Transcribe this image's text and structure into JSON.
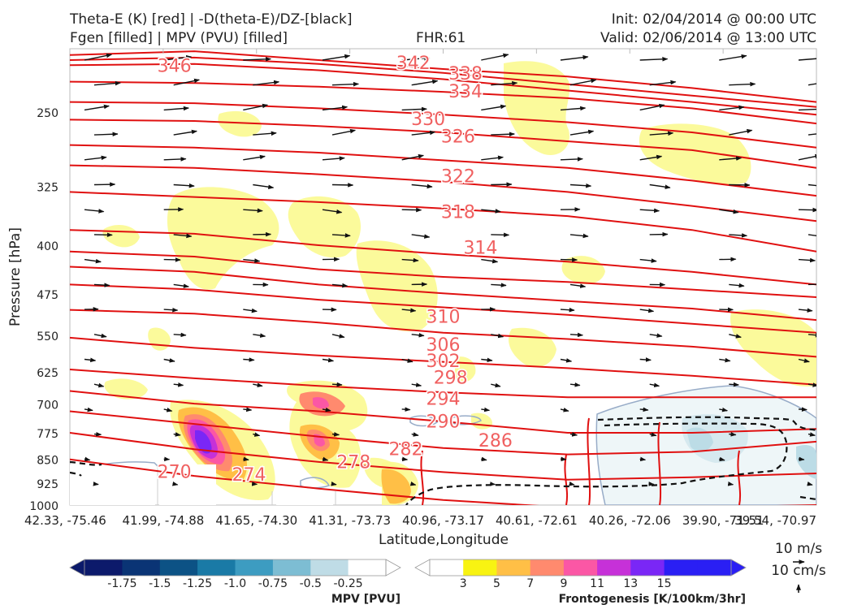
{
  "header": {
    "title_line1": "Theta-E (K) [red] | -D(theta-E)/DZ-[black]",
    "title_line2": "Fgen [filled] | MPV (PVU) [filled]",
    "fhr": "FHR:61",
    "init": "Init: 02/04/2014 @ 00:00 UTC",
    "valid": "Valid: 02/06/2014 @ 13:00 UTC"
  },
  "chart_data": {
    "type": "cross-section",
    "title": "Theta-E (K) [red] | -D(theta-E)/DZ-[black] / Fgen [filled] | MPV (PVU) [filled]",
    "xlabel": "Latitude,Longitude",
    "ylabel": "Pressure [hPa]",
    "y_scale": "log",
    "y_range": [
      1000,
      200
    ],
    "y_ticks": [
      250,
      325,
      400,
      475,
      550,
      625,
      700,
      775,
      850,
      925,
      1000
    ],
    "x_ticks": [
      "42.33, -75.46",
      "41.99, -74.88",
      "41.65, -74.30",
      "41.31, -73.73",
      "40.96, -73.17",
      "40.61, -72.61",
      "40.26, -72.06",
      "39.90, -71.51",
      "39.54, -70.97"
    ],
    "theta_e_levels": [
      346,
      342,
      338,
      334,
      330,
      326,
      322,
      318,
      314,
      310,
      306,
      302,
      298,
      294,
      290,
      286,
      282,
      278,
      274,
      270
    ],
    "contour_labels": [
      {
        "text": "346",
        "x": 0.14,
        "p": 212
      },
      {
        "text": "342",
        "x": 0.46,
        "p": 210
      },
      {
        "text": "338",
        "x": 0.53,
        "p": 218
      },
      {
        "text": "334",
        "x": 0.53,
        "p": 232
      },
      {
        "text": "330",
        "x": 0.48,
        "p": 256
      },
      {
        "text": "326",
        "x": 0.52,
        "p": 272
      },
      {
        "text": "322",
        "x": 0.52,
        "p": 313
      },
      {
        "text": "318",
        "x": 0.52,
        "p": 355
      },
      {
        "text": "314",
        "x": 0.55,
        "p": 403
      },
      {
        "text": "310",
        "x": 0.5,
        "p": 514
      },
      {
        "text": "306",
        "x": 0.5,
        "p": 567
      },
      {
        "text": "302",
        "x": 0.5,
        "p": 601
      },
      {
        "text": "298",
        "x": 0.51,
        "p": 637
      },
      {
        "text": "294",
        "x": 0.5,
        "p": 686
      },
      {
        "text": "290",
        "x": 0.5,
        "p": 743
      },
      {
        "text": "286",
        "x": 0.57,
        "p": 795
      },
      {
        "text": "282",
        "x": 0.45,
        "p": 820
      },
      {
        "text": "278",
        "x": 0.38,
        "p": 858
      },
      {
        "text": "274",
        "x": 0.24,
        "p": 897
      },
      {
        "text": "270",
        "x": 0.14,
        "p": 888
      }
    ],
    "wind_key": {
      "u_label": "10 m/s",
      "w_label": "10 cm/s"
    },
    "colorbars": {
      "mpv": {
        "label": "MPV [PVU]",
        "ticks": [
          "-1.75",
          "-1.5",
          "-1.25",
          "-1.0",
          "-0.75",
          "-0.5",
          "-0.25"
        ],
        "colors": [
          "#0c1a6b",
          "#0a3475",
          "#0c5285",
          "#1a7aa6",
          "#3d9cc1",
          "#7dbdd3",
          "#bfdce6",
          "#ffffff"
        ]
      },
      "fgen": {
        "label": "Frontogenesis [K/100km/3hr]",
        "ticks": [
          "3",
          "5",
          "7",
          "9",
          "11",
          "13",
          "15"
        ],
        "colors": [
          "#ffffff",
          "#f8f312",
          "#ffbf46",
          "#ff8a6e",
          "#fb57a5",
          "#c631d8",
          "#7a27f6",
          "#2a1ff4",
          "#2a1ff4"
        ]
      }
    },
    "legend": "none"
  }
}
